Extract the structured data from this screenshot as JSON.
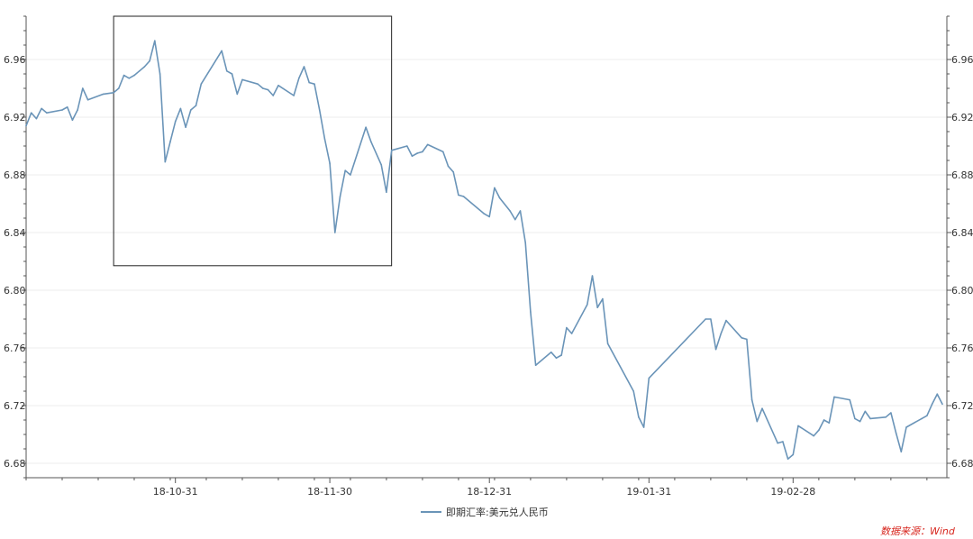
{
  "chart_data": {
    "type": "line",
    "title": "",
    "xlabel": "",
    "ylabel": "",
    "ylim": [
      6.67,
      6.99
    ],
    "y_ticks": [
      6.68,
      6.72,
      6.76,
      6.8,
      6.84,
      6.88,
      6.92,
      6.96
    ],
    "y_tick_labels": [
      "6.68",
      "6.72",
      "6.76",
      "6.80",
      "6.84",
      "6.88",
      "6.92",
      "6.96"
    ],
    "x_range": [
      "2018-10-02",
      "2019-03-29"
    ],
    "x_ticks": [
      "2018-10-31",
      "2018-11-30",
      "2018-12-31",
      "2019-01-31",
      "2019-02-28"
    ],
    "x_tick_labels": [
      "18-10-31",
      "18-11-30",
      "18-12-31",
      "19-01-31",
      "19-02-28"
    ],
    "grid": "horizontal",
    "legend_position": "bottom-center",
    "series": [
      {
        "name": "即期汇率:美元兑人民币",
        "color": "#6a94b8",
        "points": [
          [
            "2018-10-02",
            6.914
          ],
          [
            "2018-10-03",
            6.923
          ],
          [
            "2018-10-04",
            6.919
          ],
          [
            "2018-10-05",
            6.926
          ],
          [
            "2018-10-06",
            6.923
          ],
          [
            "2018-10-09",
            6.925
          ],
          [
            "2018-10-10",
            6.927
          ],
          [
            "2018-10-11",
            6.918
          ],
          [
            "2018-10-12",
            6.925
          ],
          [
            "2018-10-13",
            6.94
          ],
          [
            "2018-10-14",
            6.932
          ],
          [
            "2018-10-17",
            6.936
          ],
          [
            "2018-10-19",
            6.937
          ],
          [
            "2018-10-20",
            6.94
          ],
          [
            "2018-10-21",
            6.949
          ],
          [
            "2018-10-22",
            6.947
          ],
          [
            "2018-10-23",
            6.949
          ],
          [
            "2018-10-24",
            6.952
          ],
          [
            "2018-10-25",
            6.955
          ],
          [
            "2018-10-26",
            6.959
          ],
          [
            "2018-10-27",
            6.973
          ],
          [
            "2018-10-28",
            6.95
          ],
          [
            "2018-10-29",
            6.889
          ],
          [
            "2018-10-30",
            6.903
          ],
          [
            "2018-10-31",
            6.917
          ],
          [
            "2018-11-01",
            6.926
          ],
          [
            "2018-11-02",
            6.913
          ],
          [
            "2018-11-03",
            6.925
          ],
          [
            "2018-11-04",
            6.928
          ],
          [
            "2018-11-05",
            6.943
          ],
          [
            "2018-11-09",
            6.966
          ],
          [
            "2018-11-10",
            6.952
          ],
          [
            "2018-11-11",
            6.95
          ],
          [
            "2018-11-12",
            6.936
          ],
          [
            "2018-11-13",
            6.946
          ],
          [
            "2018-11-16",
            6.943
          ],
          [
            "2018-11-17",
            6.94
          ],
          [
            "2018-11-18",
            6.939
          ],
          [
            "2018-11-19",
            6.935
          ],
          [
            "2018-11-20",
            6.942
          ],
          [
            "2018-11-23",
            6.935
          ],
          [
            "2018-11-24",
            6.947
          ],
          [
            "2018-11-25",
            6.955
          ],
          [
            "2018-11-26",
            6.944
          ],
          [
            "2018-11-27",
            6.943
          ],
          [
            "2018-11-28",
            6.925
          ],
          [
            "2018-11-29",
            6.905
          ],
          [
            "2018-11-30",
            6.888
          ],
          [
            "2018-12-01",
            6.84
          ],
          [
            "2018-12-02",
            6.865
          ],
          [
            "2018-12-03",
            6.883
          ],
          [
            "2018-12-04",
            6.88
          ],
          [
            "2018-12-07",
            6.913
          ],
          [
            "2018-12-08",
            6.903
          ],
          [
            "2018-12-10",
            6.887
          ],
          [
            "2018-12-11",
            6.868
          ],
          [
            "2018-12-12",
            6.897
          ],
          [
            "2018-12-15",
            6.9
          ],
          [
            "2018-12-16",
            6.893
          ],
          [
            "2018-12-17",
            6.895
          ],
          [
            "2018-12-18",
            6.896
          ],
          [
            "2018-12-19",
            6.901
          ],
          [
            "2018-12-22",
            6.896
          ],
          [
            "2018-12-23",
            6.886
          ],
          [
            "2018-12-24",
            6.882
          ],
          [
            "2018-12-25",
            6.866
          ],
          [
            "2018-12-26",
            6.865
          ],
          [
            "2018-12-30",
            6.853
          ],
          [
            "2018-12-31",
            6.851
          ],
          [
            "2019-01-01",
            6.871
          ],
          [
            "2019-01-02",
            6.864
          ],
          [
            "2019-01-04",
            6.855
          ],
          [
            "2019-01-05",
            6.849
          ],
          [
            "2019-01-06",
            6.855
          ],
          [
            "2019-01-07",
            6.833
          ],
          [
            "2019-01-08",
            6.785
          ],
          [
            "2019-01-09",
            6.748
          ],
          [
            "2019-01-12",
            6.757
          ],
          [
            "2019-01-13",
            6.753
          ],
          [
            "2019-01-14",
            6.755
          ],
          [
            "2019-01-15",
            6.774
          ],
          [
            "2019-01-16",
            6.77
          ],
          [
            "2019-01-19",
            6.79
          ],
          [
            "2019-01-20",
            6.81
          ],
          [
            "2019-01-21",
            6.788
          ],
          [
            "2019-01-22",
            6.794
          ],
          [
            "2019-01-23",
            6.763
          ],
          [
            "2019-01-28",
            6.73
          ],
          [
            "2019-01-29",
            6.712
          ],
          [
            "2019-01-30",
            6.705
          ],
          [
            "2019-01-31",
            6.739
          ],
          [
            "2019-02-11",
            6.78
          ],
          [
            "2019-02-12",
            6.78
          ],
          [
            "2019-02-13",
            6.759
          ],
          [
            "2019-02-14",
            6.77
          ],
          [
            "2019-02-15",
            6.779
          ],
          [
            "2019-02-18",
            6.767
          ],
          [
            "2019-02-19",
            6.766
          ],
          [
            "2019-02-20",
            6.724
          ],
          [
            "2019-02-21",
            6.709
          ],
          [
            "2019-02-22",
            6.718
          ],
          [
            "2019-02-25",
            6.694
          ],
          [
            "2019-02-26",
            6.695
          ],
          [
            "2019-02-27",
            6.683
          ],
          [
            "2019-02-28",
            6.686
          ],
          [
            "2019-03-01",
            6.706
          ],
          [
            "2019-03-04",
            6.699
          ],
          [
            "2019-03-05",
            6.703
          ],
          [
            "2019-03-06",
            6.71
          ],
          [
            "2019-03-07",
            6.708
          ],
          [
            "2019-03-08",
            6.726
          ],
          [
            "2019-03-11",
            6.724
          ],
          [
            "2019-03-12",
            6.711
          ],
          [
            "2019-03-13",
            6.709
          ],
          [
            "2019-03-14",
            6.716
          ],
          [
            "2019-03-15",
            6.711
          ],
          [
            "2019-03-18",
            6.712
          ],
          [
            "2019-03-19",
            6.715
          ],
          [
            "2019-03-20",
            6.701
          ],
          [
            "2019-03-21",
            6.688
          ],
          [
            "2019-03-22",
            6.705
          ],
          [
            "2019-03-25",
            6.711
          ],
          [
            "2019-03-26",
            6.713
          ],
          [
            "2019-03-27",
            6.721
          ],
          [
            "2019-03-28",
            6.728
          ],
          [
            "2019-03-29",
            6.721
          ]
        ]
      }
    ],
    "highlight_box": {
      "x": [
        "2018-10-19",
        "2018-12-12"
      ],
      "y": [
        6.817,
        6.99
      ]
    },
    "source": "数据来源：Wind"
  },
  "colors": {
    "line": "#6a94b8",
    "axis": "#555555",
    "grid": "#eeeeee",
    "source": "#d7261e"
  }
}
